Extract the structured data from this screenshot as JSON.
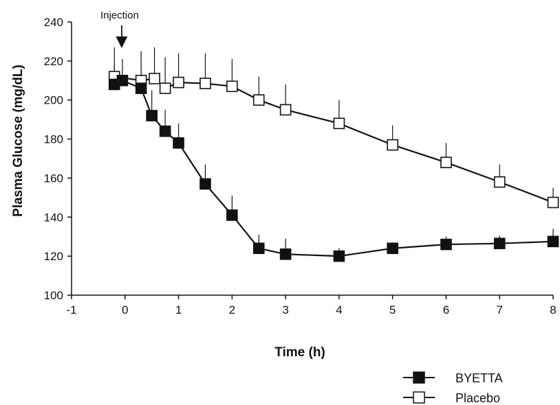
{
  "chart_data": {
    "type": "line",
    "title": "",
    "xlabel": "Time (h)",
    "ylabel": "Plasma Glucose (mg/dL)",
    "xlim": [
      -1,
      8
    ],
    "ylim": [
      100,
      240
    ],
    "xticks": [
      -1,
      0,
      1,
      2,
      3,
      4,
      5,
      6,
      7,
      8
    ],
    "yticks": [
      100,
      120,
      140,
      160,
      180,
      200,
      220,
      240
    ],
    "grid": false,
    "legend_position": "bottom-right",
    "annotations": [
      {
        "text": "Injection",
        "x": -0.05,
        "arrow": "down"
      }
    ],
    "series": [
      {
        "name": "BYETTA",
        "marker": "filled-square",
        "color": "#111111",
        "x": [
          -0.2,
          -0.05,
          0.3,
          0.5,
          0.75,
          1.0,
          1.5,
          2.0,
          2.5,
          3.0,
          4.0,
          5.0,
          6.0,
          7.0,
          8.0
        ],
        "values": [
          208,
          210,
          206,
          192,
          184,
          178,
          157,
          141,
          124,
          121,
          120,
          124,
          126,
          126.5,
          127.5
        ],
        "error_upper": [
          218,
          221,
          215,
          205,
          195,
          188,
          167,
          151,
          131,
          129,
          124,
          127,
          130,
          130.5,
          134
        ]
      },
      {
        "name": "Placebo",
        "marker": "open-square",
        "color": "#111111",
        "x": [
          -0.2,
          0.3,
          0.55,
          0.75,
          1.0,
          1.5,
          2.0,
          2.5,
          3.0,
          4.0,
          5.0,
          6.0,
          7.0,
          8.0
        ],
        "values": [
          212,
          210,
          211,
          206,
          209,
          208.5,
          207,
          200,
          195,
          188,
          177,
          168,
          158,
          147.5
        ],
        "error_upper": [
          227,
          225,
          227,
          222,
          224,
          224,
          221,
          212,
          208,
          200,
          187,
          178,
          167,
          155
        ]
      }
    ]
  }
}
